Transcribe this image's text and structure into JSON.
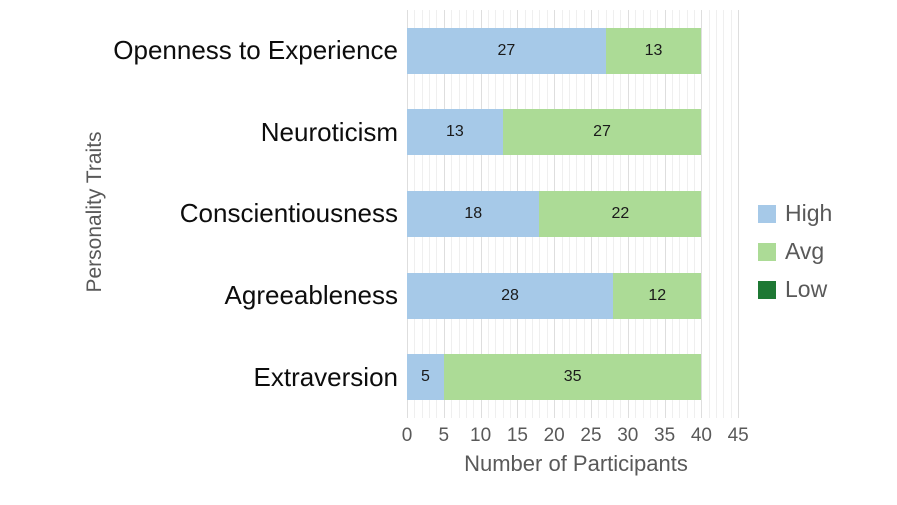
{
  "chart_data": {
    "type": "bar",
    "orientation": "horizontal",
    "stacked": true,
    "xlabel": "Number of Participants",
    "ylabel": "Personality Traits",
    "categories": [
      "Openness to Experience",
      "Neuroticism",
      "Conscientiousness",
      "Agreeableness",
      "Extraversion"
    ],
    "series": [
      {
        "name": "High",
        "color": "#A6C9E8",
        "values": [
          27,
          13,
          18,
          28,
          5
        ]
      },
      {
        "name": "Avg",
        "color": "#ACDB96",
        "values": [
          13,
          27,
          22,
          12,
          35
        ]
      },
      {
        "name": "Low",
        "color": "#1E7834",
        "values": [
          0,
          0,
          0,
          0,
          0
        ]
      }
    ],
    "xlim": [
      0,
      45
    ],
    "xticks": [
      0,
      5,
      10,
      15,
      20,
      25,
      30,
      35,
      40,
      45
    ],
    "grid": "vertical, minor every 1 unit, major every 5 units",
    "legend_position": "right"
  },
  "colors": {
    "background": "#FFFFFF",
    "series_high": "#A6C9E8",
    "series_avg": "#ACDB96",
    "series_low": "#1E7834",
    "axis_text": "#595959",
    "category_text": "#0D0D0D",
    "data_label_text": "#1A1A1A",
    "grid_minor": "#EFEFEF",
    "grid_major": "#DEDEDE"
  }
}
